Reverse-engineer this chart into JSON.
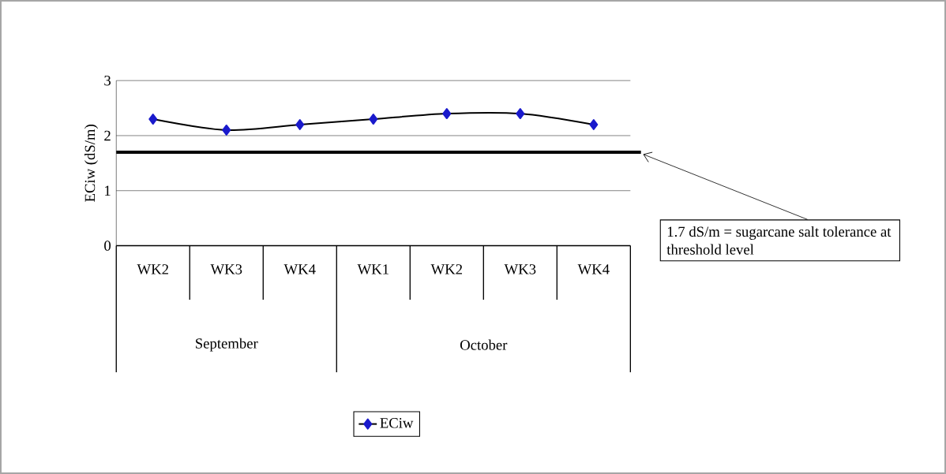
{
  "chart_data": {
    "type": "line",
    "ylabel": "ECiw (dS/m)",
    "categories": [
      "WK2",
      "WK3",
      "WK4",
      "WK1",
      "WK2",
      "WK3",
      "WK4"
    ],
    "series": [
      {
        "name": "ECiw",
        "color": "#1a1acc",
        "values": [
          2.3,
          2.1,
          2.2,
          2.3,
          2.4,
          2.4,
          2.2
        ]
      }
    ],
    "ylim": [
      0,
      3
    ],
    "yticks": [
      0,
      1,
      2,
      3
    ],
    "grid": "y",
    "marker": "diamond",
    "line_style": "solid",
    "legend": "bottom",
    "ref_lines": [
      {
        "axis": "y",
        "value": 1.7,
        "label": "1.7 dS/m = sugarcane salt tolerance at threshold level"
      }
    ],
    "annotations": [
      "September",
      "October"
    ]
  }
}
